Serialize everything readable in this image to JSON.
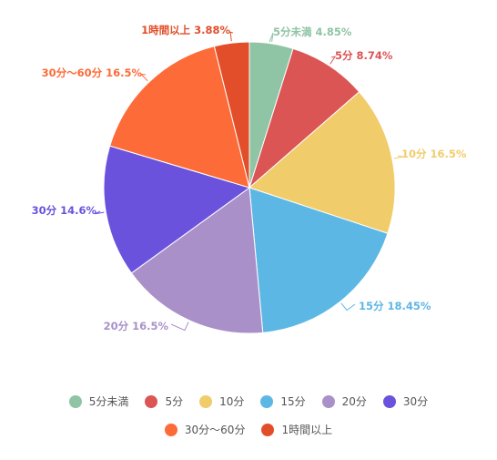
{
  "chart_data": {
    "type": "pie",
    "slices": [
      {
        "label": "5分未満",
        "value": 4.85,
        "value_text": "5分未満 4.85%",
        "color": "#8fc4a5"
      },
      {
        "label": "5分",
        "value": 8.74,
        "value_text": "5分 8.74%",
        "color": "#dc5555"
      },
      {
        "label": "10分",
        "value": 16.5,
        "value_text": "10分 16.5%",
        "color": "#f0cc6a"
      },
      {
        "label": "15分",
        "value": 18.45,
        "value_text": "15分 18.45%",
        "color": "#5db7e5"
      },
      {
        "label": "20分",
        "value": 16.5,
        "value_text": "20分 16.5%",
        "color": "#aa90c9"
      },
      {
        "label": "30分",
        "value": 14.6,
        "value_text": "30分 14.6%",
        "color": "#6b52dd"
      },
      {
        "label": "30分～60分",
        "value": 16.5,
        "value_text": "30分～60分 16.5%",
        "color": "#fd6b38"
      },
      {
        "label": "1時間以上",
        "value": 3.88,
        "value_text": "1時間以上 3.88%",
        "color": "#e24e2a"
      }
    ],
    "legend_position": "bottom"
  }
}
